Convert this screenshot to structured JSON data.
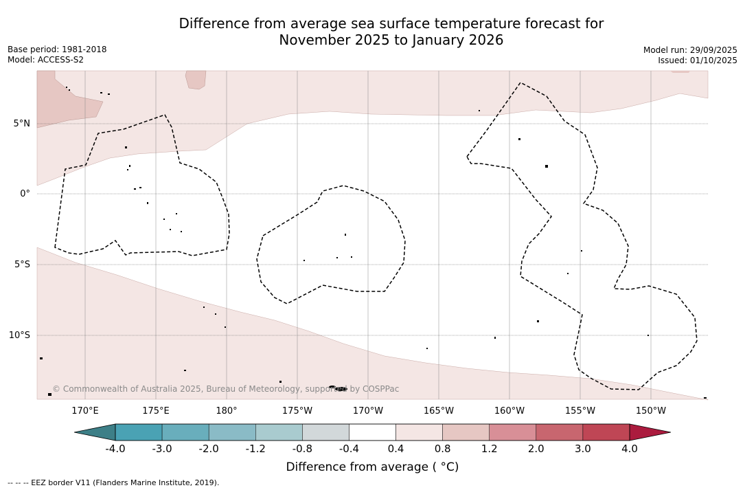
{
  "header": {
    "title_line1": "Difference from average sea surface temperature forecast for",
    "title_line2": "November 2025 to January 2026",
    "base_period": "Base period: 1981-2018",
    "model": "Model: ACCESS-S2",
    "model_run": "Model run: 29/09/2025",
    "issued": "Issued: 01/10/2025"
  },
  "map": {
    "lat_labels": [
      "5°N",
      "0°",
      "5°S",
      "10°S"
    ],
    "lon_labels": [
      "170°E",
      "175°E",
      "180°",
      "175°W",
      "170°W",
      "165°W",
      "160°W",
      "155°W",
      "150°W"
    ],
    "copyright": "© Commonwealth of Australia 2025, Bureau of Meteorology, supported by COSPPac",
    "colors": {
      "light_anomaly": "#f4e6e4",
      "mid_anomaly": "#e6c7c3",
      "coast": "#000000"
    }
  },
  "colorbar": {
    "tick_labels": [
      "-4.0",
      "-3.0",
      "-2.0",
      "-1.2",
      "-0.8",
      "-0.4",
      "0.4",
      "0.8",
      "1.2",
      "2.0",
      "3.0",
      "4.0"
    ],
    "colors": [
      "#4aa2b4",
      "#69aebc",
      "#8abbc6",
      "#a9cbcf",
      "#d2d8da",
      "#ffffff",
      "#f4e6e4",
      "#e6c7c3",
      "#d88f97",
      "#c8666f",
      "#bf4655"
    ],
    "under_color": "#3d7f87",
    "over_color": "#ab1b3e",
    "title": "Difference from average ( °C)"
  },
  "footnote": "--  --  -- EEZ border V11 (Flanders Marine Institute, 2019)."
}
